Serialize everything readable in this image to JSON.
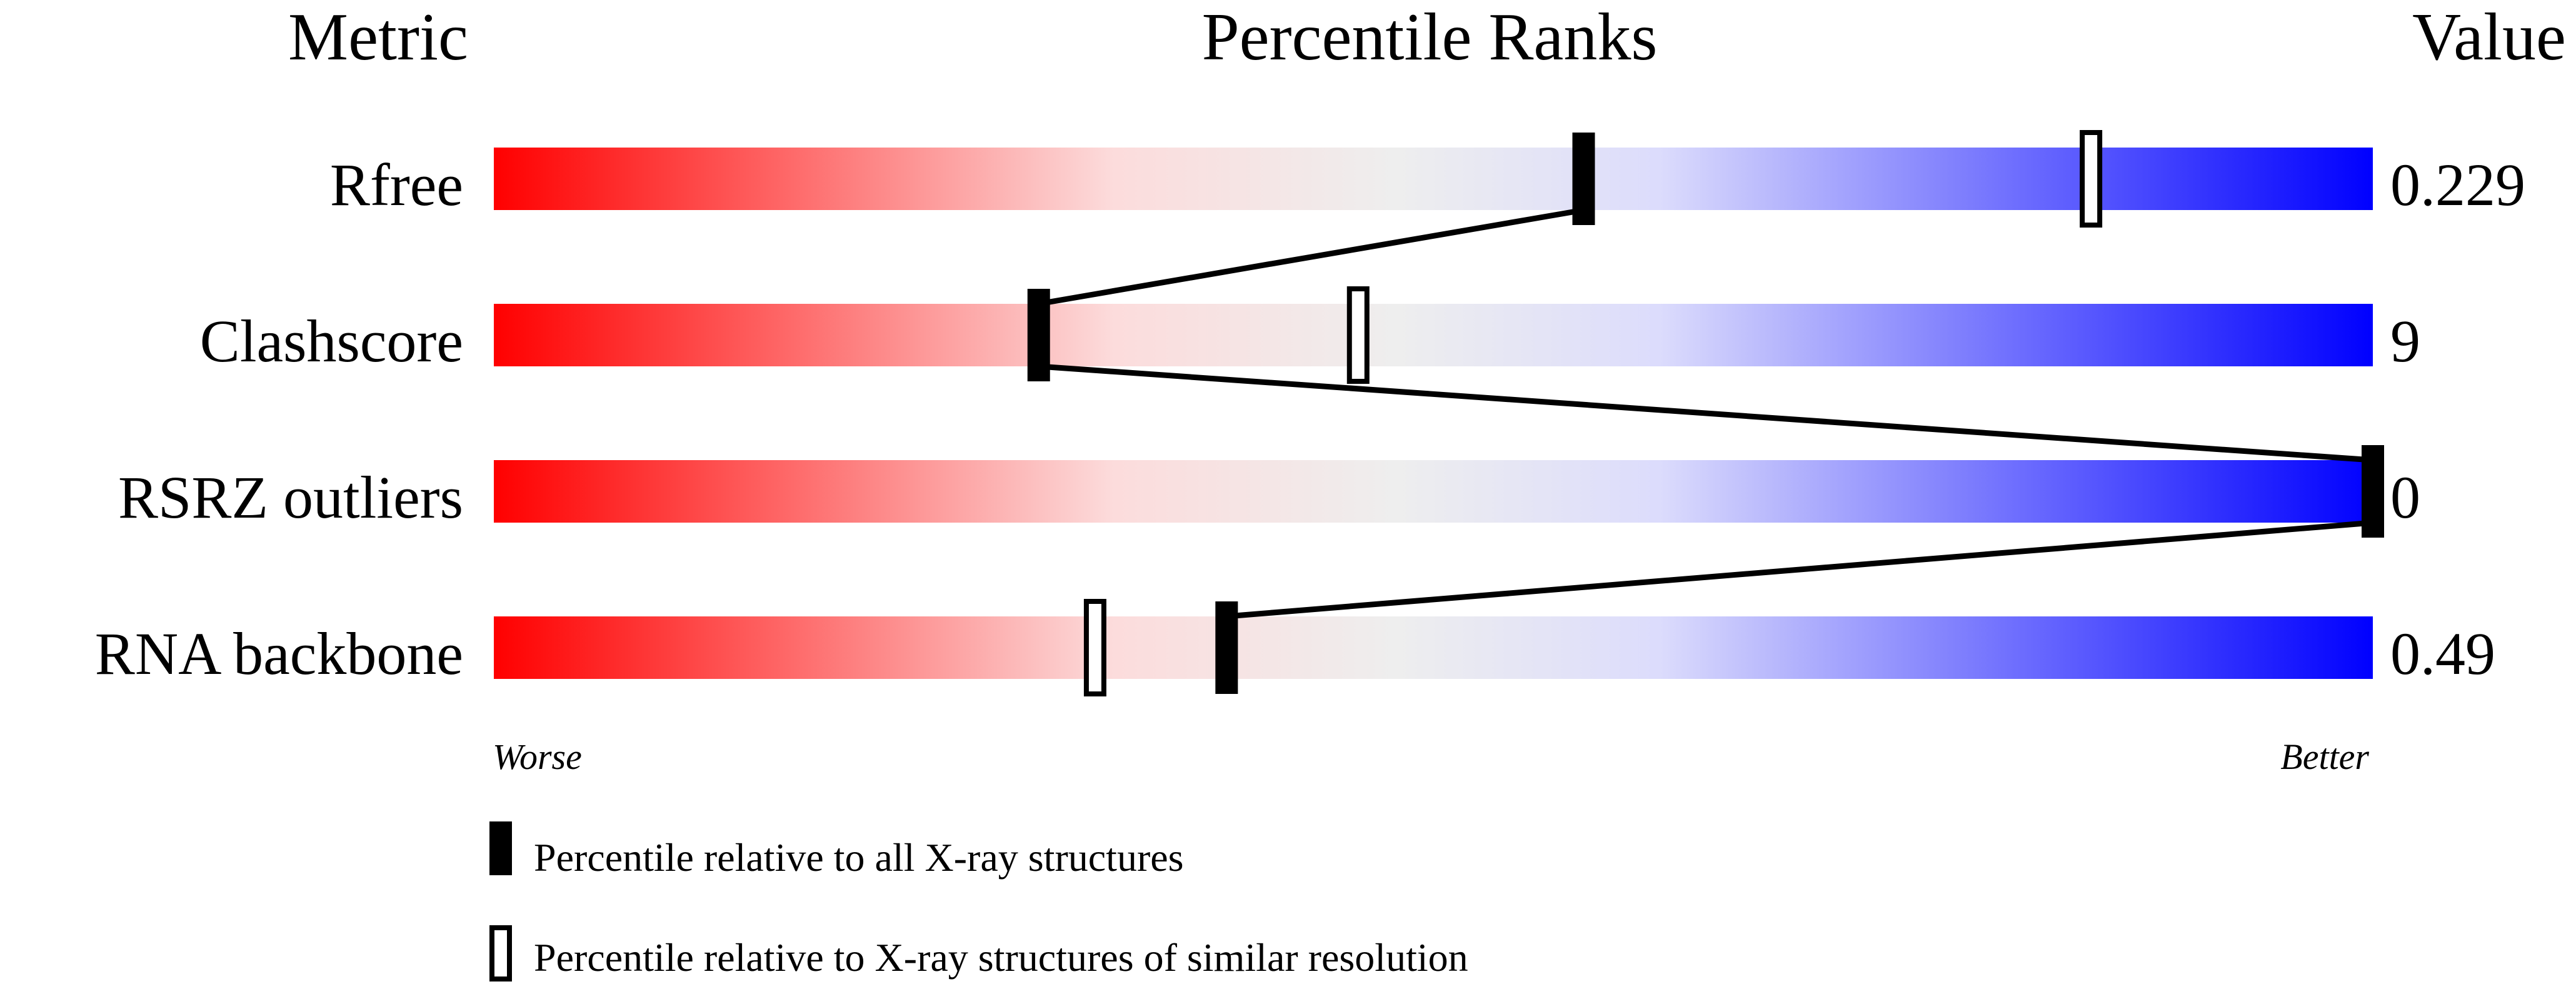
{
  "chart_data": {
    "type": "percentile-slider",
    "headers": {
      "metric": "Metric",
      "ranks": "Percentile Ranks",
      "value": "Value"
    },
    "xlim": [
      0,
      100
    ],
    "axis_ends": {
      "left": "Worse",
      "right": "Better"
    },
    "gradient_colors": [
      "#ff0000",
      "#fcdcdc",
      "#eeeeee",
      "#dcdcfc",
      "#0000ff"
    ],
    "rows": [
      {
        "metric": "Rfree",
        "value": "0.229",
        "percentile_all": 58,
        "percentile_similar": 85
      },
      {
        "metric": "Clashscore",
        "value": "9",
        "percentile_all": 29,
        "percentile_similar": 46
      },
      {
        "metric": "RSRZ outliers",
        "value": "0",
        "percentile_all": 100,
        "percentile_similar": null
      },
      {
        "metric": "RNA backbone",
        "value": "0.49",
        "percentile_all": 39,
        "percentile_similar": 32
      }
    ],
    "legend": [
      {
        "marker": "filled",
        "label": "Percentile relative to all X-ray structures"
      },
      {
        "marker": "open",
        "label": "Percentile relative to X-ray structures of similar resolution"
      }
    ]
  }
}
